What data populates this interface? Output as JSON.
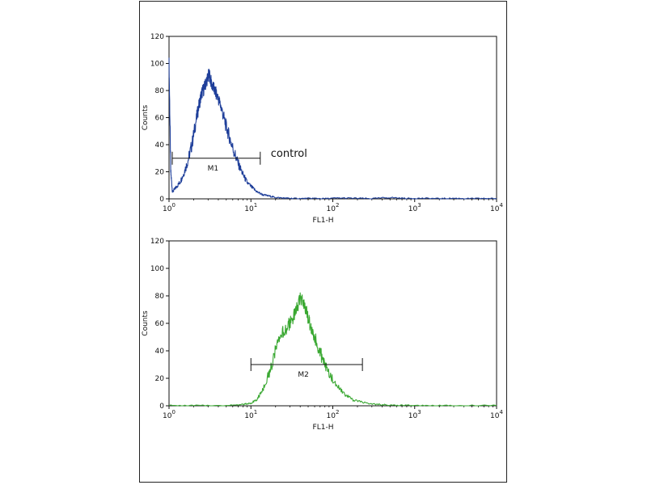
{
  "chart_data": [
    {
      "type": "line",
      "xlabel": "FL1-H",
      "ylabel": "Counts",
      "xscale": "log",
      "xlim": [
        1,
        10000
      ],
      "ylim": [
        0,
        120
      ],
      "xticks": [
        1,
        10,
        100,
        1000,
        10000
      ],
      "xtick_labels": [
        {
          "base": "10",
          "exp": "0"
        },
        {
          "base": "10",
          "exp": "1"
        },
        {
          "base": "10",
          "exp": "2"
        },
        {
          "base": "10",
          "exp": "3"
        },
        {
          "base": "10",
          "exp": "4"
        }
      ],
      "yticks": [
        "0",
        "20",
        "40",
        "60",
        "80",
        "100",
        "120"
      ],
      "grid": false,
      "color": "#1f3f9a",
      "series": [
        {
          "x": [
            1,
            1.05,
            1.1,
            1.2,
            1.35,
            1.5,
            1.7,
            1.9,
            2.1,
            2.3,
            2.5,
            2.7,
            2.9,
            3.1,
            3.3,
            3.6,
            4.0,
            4.4,
            4.9,
            5.5,
            6.2,
            7.0,
            8.0,
            9.0,
            10.5,
            12,
            14,
            17,
            20,
            25,
            30,
            40,
            55,
            80,
            120,
            200,
            300,
            500,
            800,
            1200,
            2000,
            3000,
            5000,
            7000,
            10000
          ],
          "y": [
            100,
            20,
            5,
            8,
            12,
            18,
            28,
            40,
            55,
            68,
            78,
            82,
            88,
            92,
            85,
            80,
            74,
            66,
            55,
            45,
            35,
            26,
            18,
            12,
            8,
            5,
            3,
            2,
            1,
            0.6,
            0.4,
            0.2,
            0.4,
            0.2,
            0.6,
            0.4,
            0.2,
            1,
            0.3,
            0.4,
            0.2,
            0.4,
            0.2,
            0.3,
            0.2
          ]
        }
      ],
      "marker": {
        "label": "M1",
        "range": [
          1,
          13
        ],
        "y": 30
      },
      "annotation": "control"
    },
    {
      "type": "line",
      "xlabel": "FL1-H",
      "ylabel": "Counts",
      "xscale": "log",
      "xlim": [
        1,
        10000
      ],
      "ylim": [
        0,
        120
      ],
      "xticks": [
        1,
        10,
        100,
        1000,
        10000
      ],
      "xtick_labels": [
        {
          "base": "10",
          "exp": "0"
        },
        {
          "base": "10",
          "exp": "1"
        },
        {
          "base": "10",
          "exp": "2"
        },
        {
          "base": "10",
          "exp": "3"
        },
        {
          "base": "10",
          "exp": "4"
        }
      ],
      "yticks": [
        "0",
        "20",
        "40",
        "60",
        "80",
        "100",
        "120"
      ],
      "grid": false,
      "color": "#3aa832",
      "series": [
        {
          "x": [
            1,
            2,
            5,
            8,
            10,
            12,
            14,
            17,
            20,
            24,
            28,
            32,
            36,
            40,
            44,
            48,
            52,
            58,
            65,
            75,
            90,
            110,
            140,
            180,
            250,
            350,
            500,
            800,
            1500,
            3000,
            10000
          ],
          "y": [
            0.2,
            0.2,
            0.3,
            1,
            2,
            5,
            12,
            25,
            40,
            52,
            58,
            62,
            70,
            78,
            76,
            68,
            60,
            52,
            44,
            34,
            24,
            15,
            8,
            4,
            2,
            1,
            0.5,
            0.3,
            0.2,
            0.2,
            0.2
          ]
        }
      ],
      "marker": {
        "label": "M2",
        "range": [
          10,
          230
        ],
        "y": 30
      }
    }
  ]
}
